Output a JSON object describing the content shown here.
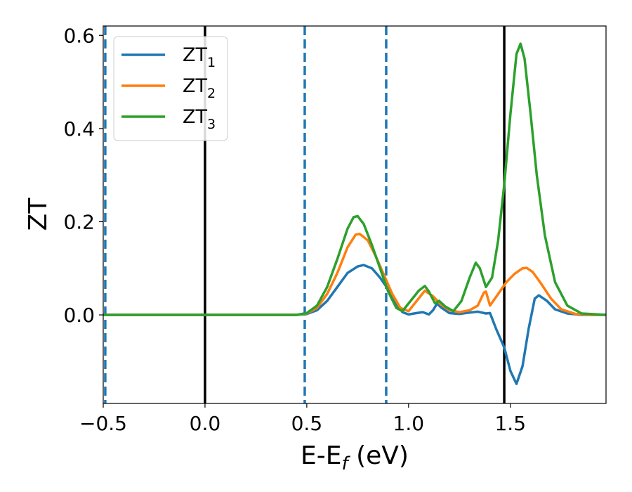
{
  "chart_data": {
    "type": "line",
    "title": "",
    "xlabel": "E-E",
    "xlabel_sub": "f",
    "xlabel_unit": " (eV)",
    "ylabel": "ZT",
    "xlim": [
      -0.5,
      1.97
    ],
    "ylim": [
      -0.19,
      0.62
    ],
    "grid": false,
    "legend_position": "top-left",
    "x_ticks": [
      {
        "value": -0.5,
        "label": "−0.5"
      },
      {
        "value": 0.0,
        "label": "0.0"
      },
      {
        "value": 0.5,
        "label": "0.5"
      },
      {
        "value": 1.0,
        "label": "1.0"
      },
      {
        "value": 1.5,
        "label": "1.5"
      }
    ],
    "y_ticks": [
      {
        "value": 0.0,
        "label": "0.0"
      },
      {
        "value": 0.2,
        "label": "0.2"
      },
      {
        "value": 0.4,
        "label": "0.4"
      },
      {
        "value": 0.6,
        "label": "0.6"
      }
    ],
    "vertical_lines": [
      {
        "x": -0.49,
        "style": "dashed",
        "color": "#1f77b4"
      },
      {
        "x": 0.0,
        "style": "solid",
        "color": "#000000"
      },
      {
        "x": 0.49,
        "style": "dashed",
        "color": "#1f77b4"
      },
      {
        "x": 0.89,
        "style": "dashed",
        "color": "#1f77b4"
      },
      {
        "x": 1.47,
        "style": "solid",
        "color": "#000000"
      }
    ],
    "series": [
      {
        "name": "ZT",
        "sub": "1",
        "color": "#1f77b4",
        "points": [
          [
            -0.5,
            0
          ],
          [
            0.45,
            0
          ],
          [
            0.5,
            0.002
          ],
          [
            0.55,
            0.01
          ],
          [
            0.6,
            0.03
          ],
          [
            0.65,
            0.06
          ],
          [
            0.7,
            0.09
          ],
          [
            0.75,
            0.104
          ],
          [
            0.78,
            0.107
          ],
          [
            0.82,
            0.1
          ],
          [
            0.86,
            0.08
          ],
          [
            0.9,
            0.055
          ],
          [
            0.94,
            0.025
          ],
          [
            0.97,
            0.006
          ],
          [
            1.0,
            0.001
          ],
          [
            1.04,
            0.004
          ],
          [
            1.07,
            0.006
          ],
          [
            1.1,
            0.001
          ],
          [
            1.12,
            0.01
          ],
          [
            1.14,
            0.024
          ],
          [
            1.16,
            0.016
          ],
          [
            1.2,
            0.004
          ],
          [
            1.25,
            0.002
          ],
          [
            1.3,
            0.005
          ],
          [
            1.34,
            0.007
          ],
          [
            1.38,
            0.003
          ],
          [
            1.4,
            0.004
          ],
          [
            1.43,
            -0.03
          ],
          [
            1.47,
            -0.07
          ],
          [
            1.5,
            -0.12
          ],
          [
            1.53,
            -0.148
          ],
          [
            1.56,
            -0.11
          ],
          [
            1.59,
            -0.03
          ],
          [
            1.62,
            0.035
          ],
          [
            1.64,
            0.042
          ],
          [
            1.68,
            0.03
          ],
          [
            1.72,
            0.012
          ],
          [
            1.78,
            0.003
          ],
          [
            1.85,
            0
          ],
          [
            1.97,
            0
          ]
        ]
      },
      {
        "name": "ZT",
        "sub": "2",
        "color": "#ff7f0e",
        "points": [
          [
            -0.5,
            0
          ],
          [
            0.45,
            0
          ],
          [
            0.5,
            0.003
          ],
          [
            0.55,
            0.015
          ],
          [
            0.6,
            0.045
          ],
          [
            0.65,
            0.09
          ],
          [
            0.7,
            0.145
          ],
          [
            0.74,
            0.172
          ],
          [
            0.76,
            0.174
          ],
          [
            0.8,
            0.16
          ],
          [
            0.84,
            0.125
          ],
          [
            0.88,
            0.085
          ],
          [
            0.92,
            0.045
          ],
          [
            0.96,
            0.015
          ],
          [
            1.0,
            0.008
          ],
          [
            1.04,
            0.03
          ],
          [
            1.08,
            0.052
          ],
          [
            1.12,
            0.04
          ],
          [
            1.16,
            0.022
          ],
          [
            1.2,
            0.01
          ],
          [
            1.25,
            0.006
          ],
          [
            1.3,
            0.01
          ],
          [
            1.34,
            0.02
          ],
          [
            1.37,
            0.048
          ],
          [
            1.38,
            0.05
          ],
          [
            1.4,
            0.02
          ],
          [
            1.44,
            0.045
          ],
          [
            1.48,
            0.07
          ],
          [
            1.52,
            0.088
          ],
          [
            1.56,
            0.1
          ],
          [
            1.58,
            0.101
          ],
          [
            1.61,
            0.092
          ],
          [
            1.65,
            0.068
          ],
          [
            1.7,
            0.035
          ],
          [
            1.75,
            0.012
          ],
          [
            1.82,
            0.002
          ],
          [
            1.9,
            0
          ],
          [
            1.97,
            0
          ]
        ]
      },
      {
        "name": "ZT",
        "sub": "3",
        "color": "#2ca02c",
        "points": [
          [
            -0.5,
            0
          ],
          [
            0.45,
            0
          ],
          [
            0.5,
            0.004
          ],
          [
            0.55,
            0.02
          ],
          [
            0.6,
            0.06
          ],
          [
            0.65,
            0.12
          ],
          [
            0.7,
            0.185
          ],
          [
            0.73,
            0.21
          ],
          [
            0.75,
            0.212
          ],
          [
            0.78,
            0.195
          ],
          [
            0.82,
            0.15
          ],
          [
            0.86,
            0.1
          ],
          [
            0.9,
            0.05
          ],
          [
            0.94,
            0.015
          ],
          [
            0.97,
            0.008
          ],
          [
            1.01,
            0.03
          ],
          [
            1.05,
            0.052
          ],
          [
            1.08,
            0.062
          ],
          [
            1.1,
            0.05
          ],
          [
            1.13,
            0.025
          ],
          [
            1.15,
            0.03
          ],
          [
            1.18,
            0.018
          ],
          [
            1.22,
            0.008
          ],
          [
            1.26,
            0.03
          ],
          [
            1.3,
            0.08
          ],
          [
            1.33,
            0.112
          ],
          [
            1.35,
            0.1
          ],
          [
            1.38,
            0.06
          ],
          [
            1.41,
            0.08
          ],
          [
            1.44,
            0.16
          ],
          [
            1.47,
            0.28
          ],
          [
            1.5,
            0.43
          ],
          [
            1.53,
            0.56
          ],
          [
            1.55,
            0.582
          ],
          [
            1.57,
            0.55
          ],
          [
            1.6,
            0.43
          ],
          [
            1.63,
            0.3
          ],
          [
            1.67,
            0.17
          ],
          [
            1.72,
            0.07
          ],
          [
            1.78,
            0.02
          ],
          [
            1.85,
            0.003
          ],
          [
            1.97,
            0
          ]
        ]
      }
    ]
  }
}
